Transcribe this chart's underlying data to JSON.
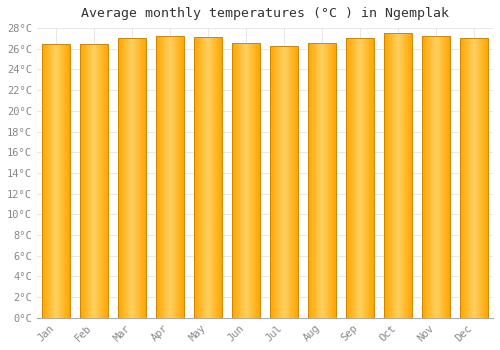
{
  "title": "Average monthly temperatures (°C ) in Ngemplak",
  "months": [
    "Jan",
    "Feb",
    "Mar",
    "Apr",
    "May",
    "Jun",
    "Jul",
    "Aug",
    "Sep",
    "Oct",
    "Nov",
    "Dec"
  ],
  "values": [
    26.5,
    26.5,
    27.0,
    27.2,
    27.1,
    26.6,
    26.3,
    26.6,
    27.0,
    27.5,
    27.2,
    27.0
  ],
  "ylim": [
    0,
    28
  ],
  "yticks": [
    0,
    2,
    4,
    6,
    8,
    10,
    12,
    14,
    16,
    18,
    20,
    22,
    24,
    26,
    28
  ],
  "bar_edge_color": "#CC8800",
  "bar_color_center": "#FFD060",
  "bar_color_edge": "#FFA500",
  "background_color": "#FFFFFF",
  "grid_color": "#DDDDDD",
  "title_fontsize": 9.5,
  "tick_fontsize": 7.5
}
